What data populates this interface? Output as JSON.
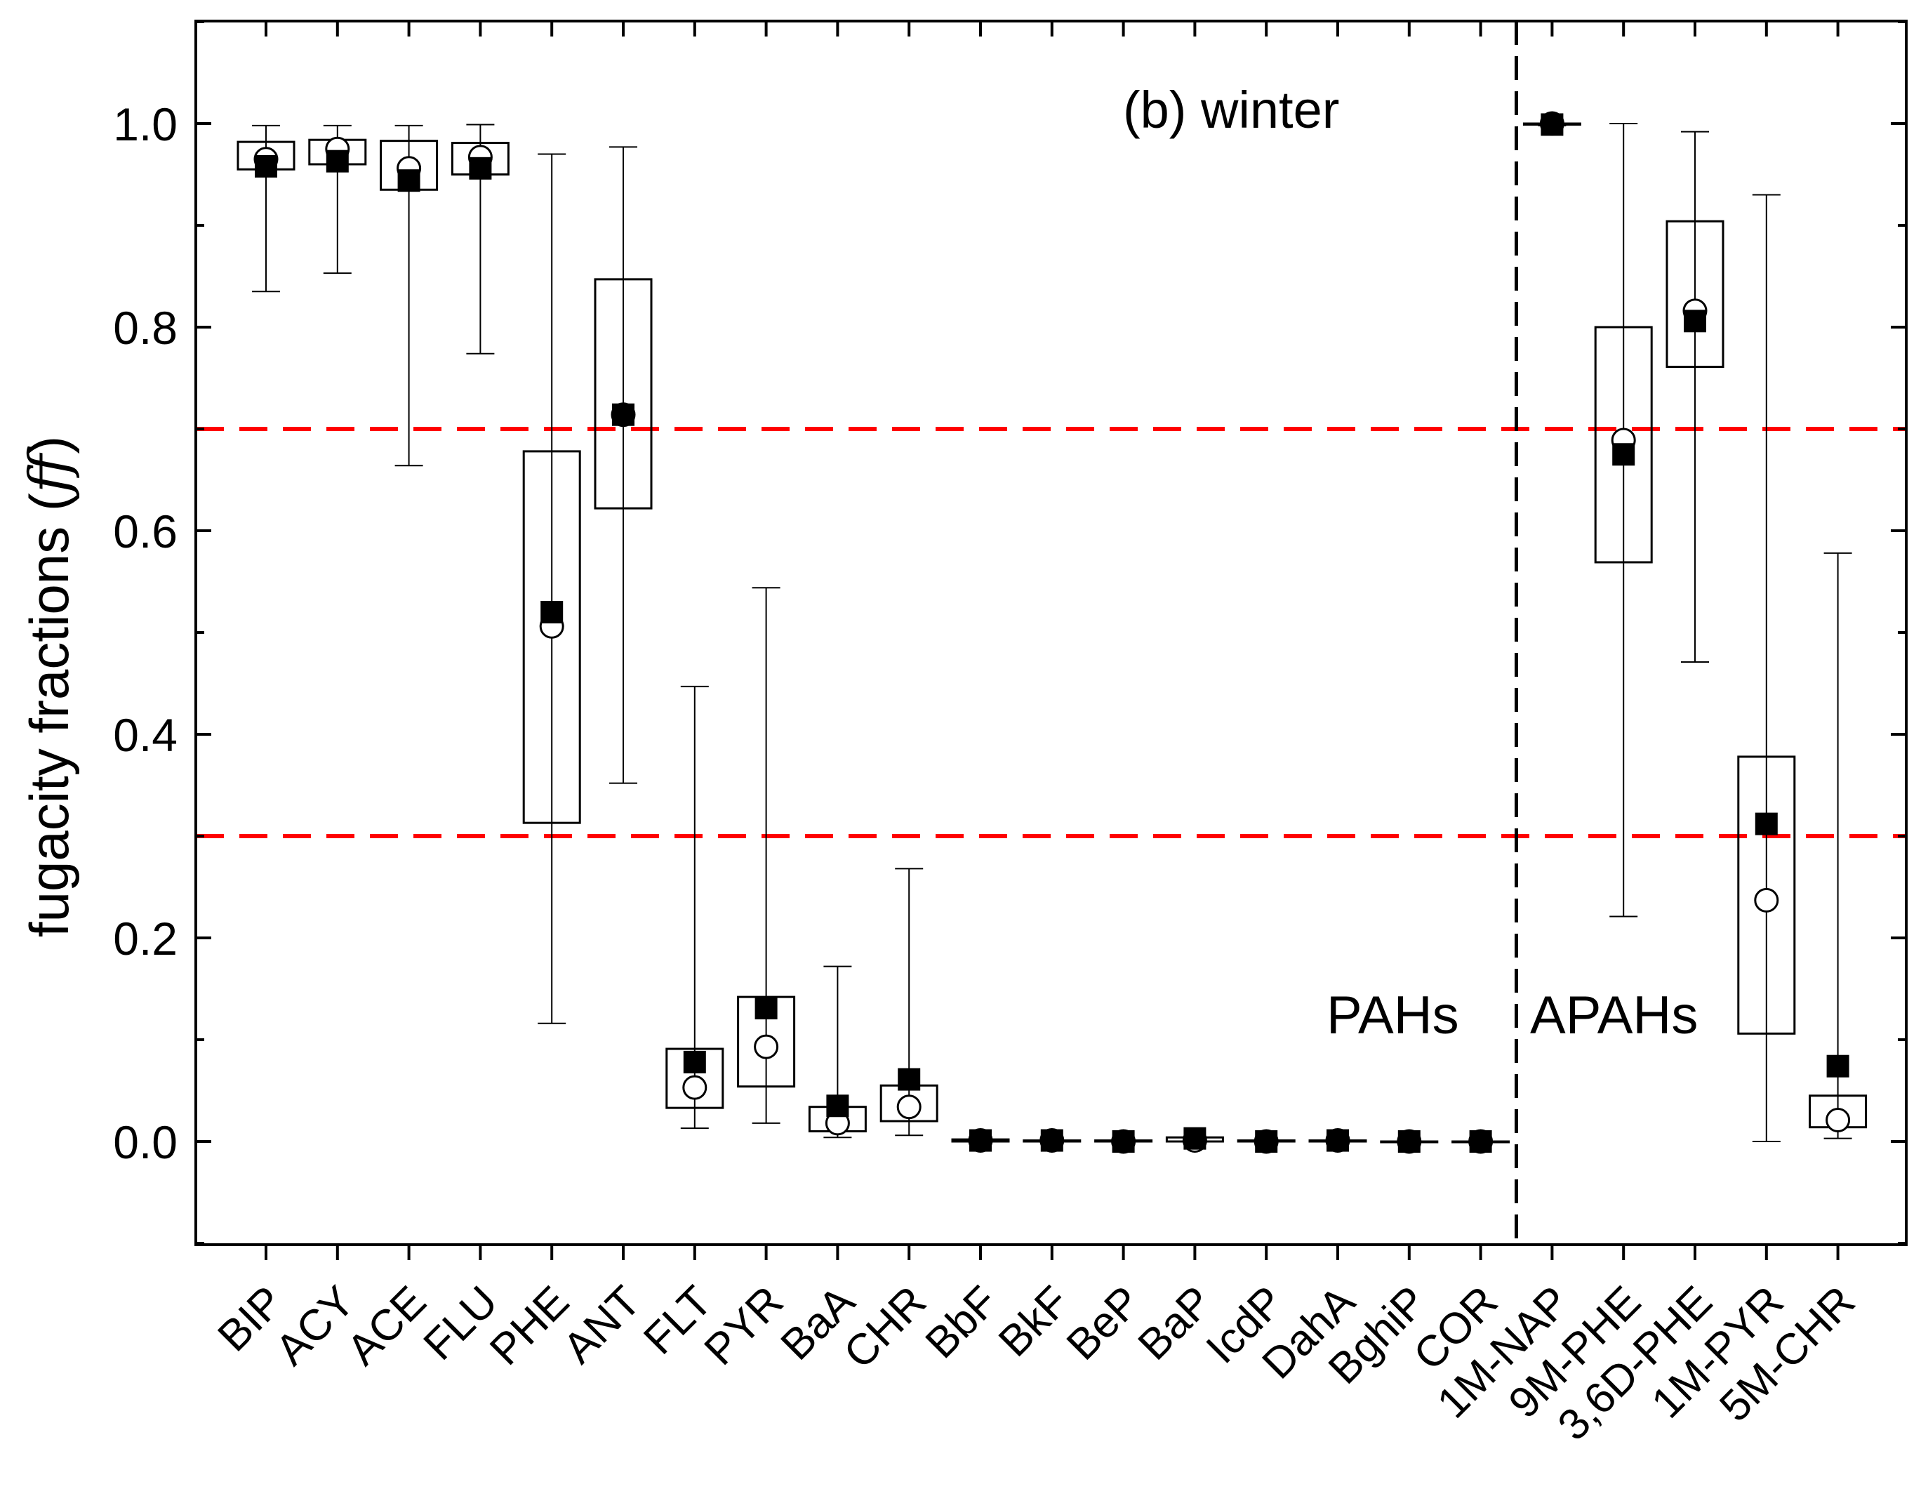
{
  "chart_data": {
    "type": "box",
    "title": "(b) winter",
    "xlabel": "",
    "ylabel": "fugacity fractions (",
    "ylabel_symbol": "ff",
    "ylabel_close": ")",
    "ylim": [
      -0.1,
      1.1
    ],
    "yticks": [
      0.0,
      0.2,
      0.4,
      0.6,
      0.8,
      1.0
    ],
    "ytick_labels": [
      "0.0",
      "0.2",
      "0.4",
      "0.6",
      "0.8",
      "1.0"
    ],
    "grid": false,
    "reference_lines": [
      0.3,
      0.7
    ],
    "reference_line_color": "#ff0000",
    "group_labels": [
      "PAHs",
      "APAHs"
    ],
    "group_split_after_index": 17,
    "categories": [
      "BIP",
      "ACY",
      "ACE",
      "FLU",
      "PHE",
      "ANT",
      "FLT",
      "PYR",
      "BaA",
      "CHR",
      "BbF",
      "BkF",
      "BeP",
      "BaP",
      "IcdP",
      "DahA",
      "BghiP",
      "COR",
      "1M-NAP",
      "9M-PHE",
      "3,6D-PHE",
      "1M-PYR",
      "5M-CHR"
    ],
    "series": [
      {
        "name": "whisker_low",
        "values": [
          0.835,
          0.853,
          0.664,
          0.774,
          0.116,
          0.352,
          0.013,
          0.018,
          0.004,
          0.006,
          0.0,
          0.0,
          0.0,
          0.0,
          0.0,
          0.0,
          0.0,
          0.0,
          0.998,
          0.221,
          0.471,
          0.0,
          0.003
        ]
      },
      {
        "name": "box_low",
        "values": [
          0.955,
          0.96,
          0.935,
          0.95,
          0.313,
          0.622,
          0.033,
          0.054,
          0.01,
          0.02,
          0.0,
          0.0,
          0.0,
          0.0,
          0.0,
          0.0,
          0.0,
          0.0,
          0.999,
          0.569,
          0.761,
          0.106,
          0.014
        ]
      },
      {
        "name": "box_high",
        "values": [
          0.982,
          0.984,
          0.983,
          0.981,
          0.678,
          0.847,
          0.091,
          0.142,
          0.034,
          0.055,
          0.002,
          0.001,
          0.001,
          0.004,
          0.001,
          0.001,
          0.0,
          0.0,
          1.0,
          0.8,
          0.904,
          0.378,
          0.045
        ]
      },
      {
        "name": "whisker_high",
        "values": [
          0.998,
          0.998,
          0.998,
          0.999,
          0.97,
          0.977,
          0.447,
          0.544,
          0.172,
          0.268,
          0.002,
          0.001,
          0.001,
          0.004,
          0.001,
          0.001,
          0.0,
          0.0,
          1.0,
          1.0,
          0.992,
          0.93,
          0.578
        ]
      },
      {
        "name": "median",
        "values": [
          0.965,
          0.975,
          0.956,
          0.967,
          0.506,
          0.714,
          0.053,
          0.093,
          0.018,
          0.034,
          0.001,
          0.001,
          0.0,
          0.001,
          0.0,
          0.001,
          0.0,
          0.0,
          1.0,
          0.689,
          0.816,
          0.237,
          0.021
        ]
      },
      {
        "name": "mean",
        "values": [
          0.958,
          0.963,
          0.944,
          0.956,
          0.52,
          0.714,
          0.078,
          0.131,
          0.035,
          0.061,
          0.001,
          0.001,
          0.0,
          0.003,
          0.0,
          0.001,
          0.0,
          0.0,
          0.999,
          0.675,
          0.806,
          0.312,
          0.074
        ]
      }
    ]
  }
}
